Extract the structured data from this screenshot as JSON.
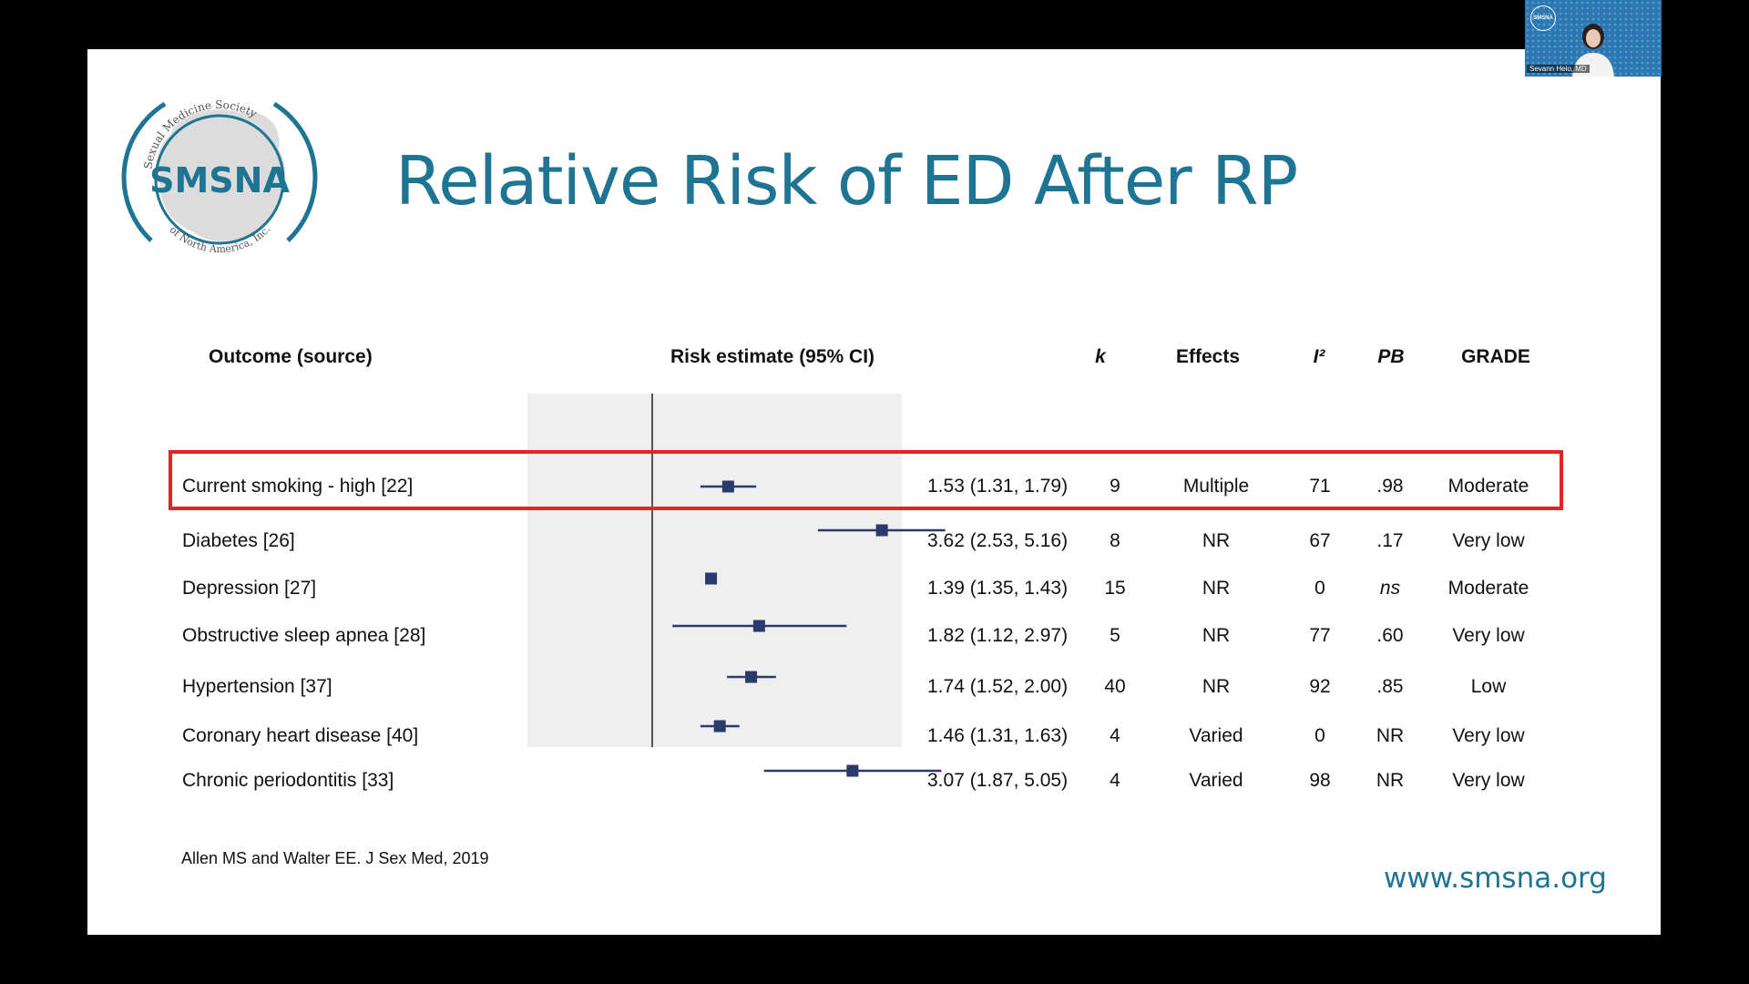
{
  "slide": {
    "title": "Relative Risk of ED After RP",
    "logo": {
      "name": "SMSNA",
      "arc_top": "Sexual Medicine Society",
      "arc_bottom": "of North America, Inc."
    },
    "citation": "Allen MS and Walter EE. J Sex Med, 2019",
    "url": "www.smsna.org"
  },
  "table": {
    "headers": {
      "outcome": "Outcome (source)",
      "risk": "Risk estimate (95% CI)",
      "k": "k",
      "effects": "Effects",
      "i2": "I²",
      "pb": "PB",
      "grade": "GRADE"
    },
    "rows": [
      {
        "outcome": "Current smoking - high [22]",
        "ci": "1.53 (1.31, 1.79)",
        "k": "9",
        "effects": "Multiple",
        "i2": "71",
        "pb": ".98",
        "grade": "Moderate",
        "highlighted": false
      },
      {
        "outcome": "Diabetes [26]",
        "ci": "3.62 (2.53, 5.16)",
        "k": "8",
        "effects": "NR",
        "i2": "67",
        "pb": ".17",
        "grade": "Very low",
        "highlighted": true
      },
      {
        "outcome": "Depression [27]",
        "ci": "1.39 (1.35, 1.43)",
        "k": "15",
        "effects": "NR",
        "i2": "0",
        "pb": "ns",
        "grade": "Moderate",
        "highlighted": false
      },
      {
        "outcome": "Obstructive sleep apnea [28]",
        "ci": "1.82 (1.12, 2.97)",
        "k": "5",
        "effects": "NR",
        "i2": "77",
        "pb": ".60",
        "grade": "Very low",
        "highlighted": false
      },
      {
        "outcome": "Hypertension [37]",
        "ci": "1.74 (1.52, 2.00)",
        "k": "40",
        "effects": "NR",
        "i2": "92",
        "pb": ".85",
        "grade": "Low",
        "highlighted": false
      },
      {
        "outcome": "Coronary heart disease [40]",
        "ci": "1.46 (1.31, 1.63)",
        "k": "4",
        "effects": "Varied",
        "i2": "0",
        "pb": "NR",
        "grade": "Very low",
        "highlighted": false
      },
      {
        "outcome": "Chronic periodontitis [33]",
        "ci": "3.07 (1.87, 5.05)",
        "k": "4",
        "effects": "Varied",
        "i2": "98",
        "pb": "NR",
        "grade": "Very low",
        "highlighted": false
      }
    ]
  },
  "chart_data": {
    "type": "scatter",
    "reference_line": 1,
    "series": [
      {
        "category": "Current smoking - high [22]",
        "estimate": 1.53,
        "lower": 1.31,
        "upper": 1.79
      },
      {
        "category": "Diabetes [26]",
        "estimate": 3.62,
        "lower": 2.53,
        "upper": 5.16
      },
      {
        "category": "Depression [27]",
        "estimate": 1.39,
        "lower": 1.35,
        "upper": 1.43
      },
      {
        "category": "Obstructive sleep apnea [28]",
        "estimate": 1.82,
        "lower": 1.12,
        "upper": 2.97
      },
      {
        "category": "Hypertension [37]",
        "estimate": 1.74,
        "lower": 1.52,
        "upper": 2.0
      },
      {
        "category": "Coronary heart disease [40]",
        "estimate": 1.46,
        "lower": 1.31,
        "upper": 1.63
      },
      {
        "category": "Chronic periodontitis [33]",
        "estimate": 3.07,
        "lower": 1.87,
        "upper": 5.05
      }
    ]
  },
  "colors": {
    "accent": "#1e7493",
    "marker": "#2a3a6b",
    "highlight": "#e0261e"
  },
  "webcam": {
    "name": "Sevann Helo, MD",
    "logo_text": "SMSNA"
  }
}
